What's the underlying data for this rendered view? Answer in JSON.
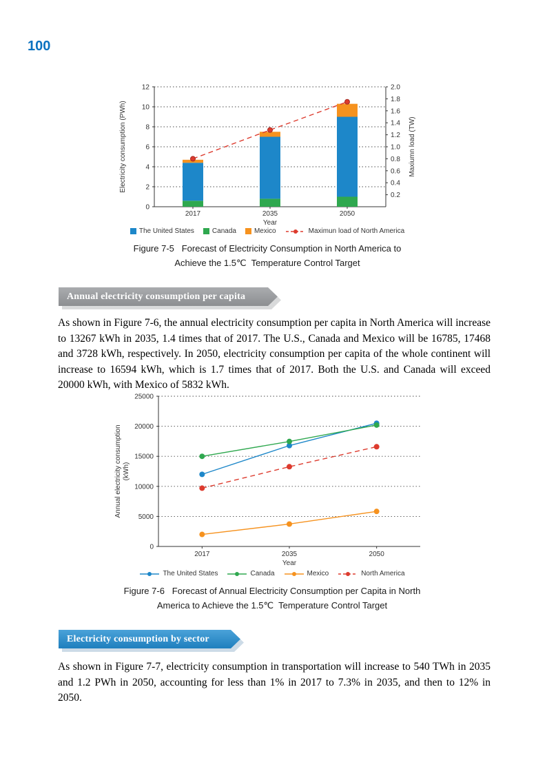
{
  "page": {
    "number": "100"
  },
  "figure5": {
    "caption_line1": "Figure 7-5   Forecast of Electricity Consumption in North America to",
    "caption_line2": "Achieve the 1.5℃  Temperature Control Target"
  },
  "section1": {
    "title": "Annual electricity consumption per capita",
    "paragraph": "As shown in Figure 7-6, the annual electricity consumption per capita in North America will increase to 13267 kWh in 2035, 1.4 times that of 2017. The U.S., Canada and Mexico will be 16785, 17468 and 3728 kWh, respectively. In 2050, electricity consumption per capita of the whole continent will increase to 16594 kWh, which is 1.7 times that of 2017. Both the U.S. and Canada will exceed 20000 kWh, with Mexico of 5832 kWh."
  },
  "figure6": {
    "caption_line1": "Figure 7-6   Forecast of Annual Electricity Consumption per Capita in North",
    "caption_line2": "America to Achieve the 1.5℃  Temperature Control Target"
  },
  "section2": {
    "title": "Electricity consumption by sector",
    "paragraph": "As shown in Figure 7-7, electricity consumption in transportation will increase to 540 TWh in 2035 and 1.2 PWh in 2050, accounting for less than 1% in 2017 to 7.3% in 2035, and then to 12% in 2050."
  },
  "chart_data": [
    {
      "type": "bar",
      "stacked": true,
      "categories": [
        "2017",
        "2035",
        "2050"
      ],
      "series": [
        {
          "name": "Canada",
          "color": "#2fa84f",
          "values": [
            0.6,
            0.8,
            1.0
          ]
        },
        {
          "name": "The United States",
          "color": "#1d87c9",
          "values": [
            3.8,
            6.2,
            8.0
          ]
        },
        {
          "name": "Mexico",
          "color": "#f6921e",
          "values": [
            0.3,
            0.5,
            1.3
          ]
        }
      ],
      "line_series": {
        "name": "Maximun load of North America",
        "color": "#dd3b2e",
        "values": [
          0.8,
          1.28,
          1.75
        ],
        "axis": "right",
        "dashed": true
      },
      "xlabel": "Year",
      "ylabel_left": "Electricity consumption (PWh)",
      "ylabel_right": "Maxiumn load (TW)",
      "ylim_left": [
        0,
        12
      ],
      "ytick_step_left": 2,
      "ylim_right": [
        0,
        2.0
      ],
      "ytick_step_right": 0.2,
      "grid": "dotted-horizontal",
      "legend_position": "bottom",
      "legend": [
        {
          "label": "The United States",
          "color": "#1d87c9",
          "marker": "square"
        },
        {
          "label": "Canada",
          "color": "#2fa84f",
          "marker": "square"
        },
        {
          "label": "Mexico",
          "color": "#f6921e",
          "marker": "square"
        },
        {
          "label": "Maximun load of North America",
          "color": "#dd3b2e",
          "marker": "dash-dot",
          "dashed": true
        }
      ]
    },
    {
      "type": "line",
      "x": [
        "2017",
        "2035",
        "2050"
      ],
      "series": [
        {
          "name": "The United States",
          "color": "#1d87c9",
          "values": [
            12000,
            16785,
            20500
          ],
          "dashed": false
        },
        {
          "name": "Canada",
          "color": "#2fa84f",
          "values": [
            15000,
            17468,
            20200
          ],
          "dashed": false
        },
        {
          "name": "Mexico",
          "color": "#f6921e",
          "values": [
            2000,
            3728,
            5832
          ],
          "dashed": false
        },
        {
          "name": "North America",
          "color": "#dd3b2e",
          "values": [
            9700,
            13267,
            16594
          ],
          "dashed": true
        }
      ],
      "xlabel": "Year",
      "ylabel_line1": "Annual electricity consumption",
      "ylabel_line2": "(kWh)",
      "ylim": [
        0,
        25000
      ],
      "ytick_step": 5000,
      "grid": "dotted-horizontal",
      "legend_position": "bottom",
      "legend": [
        {
          "label": "The United States",
          "color": "#1d87c9",
          "marker": "line-dot",
          "dashed": false
        },
        {
          "label": "Canada",
          "color": "#2fa84f",
          "marker": "line-dot",
          "dashed": false
        },
        {
          "label": "Mexico",
          "color": "#f6921e",
          "marker": "line-dot",
          "dashed": false
        },
        {
          "label": "North America",
          "color": "#dd3b2e",
          "marker": "line-dot",
          "dashed": true
        }
      ]
    }
  ]
}
